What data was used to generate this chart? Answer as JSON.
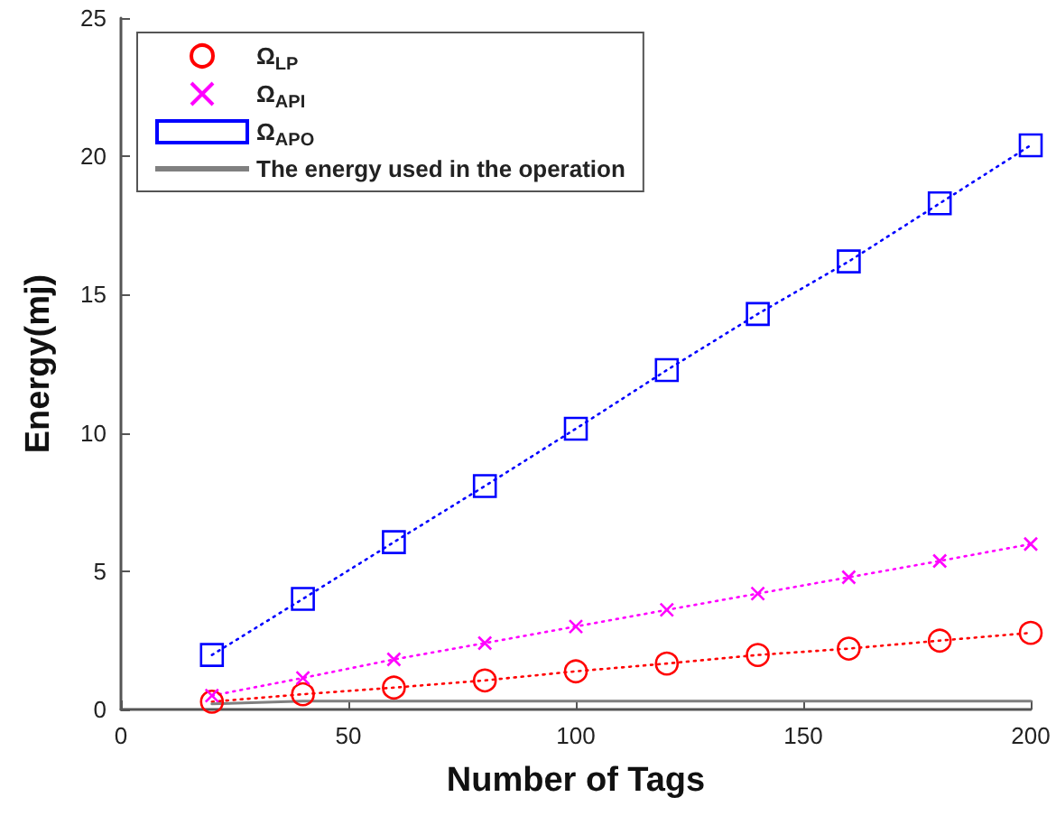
{
  "chart_data": {
    "type": "line",
    "xlabel": "Number of Tags",
    "ylabel": "Energy(mj)",
    "x": [
      20,
      40,
      60,
      80,
      100,
      120,
      140,
      160,
      180,
      200
    ],
    "series": [
      {
        "name": "Ω$_{LP}$",
        "color": "#ff0000",
        "marker": "circle",
        "line_style": "dotted",
        "values": [
          0.28,
          0.55,
          0.79,
          1.05,
          1.38,
          1.66,
          1.97,
          2.2,
          2.49,
          2.77
        ]
      },
      {
        "name": "Ω$_{API}$",
        "color": "#ff00ff",
        "marker": "cross",
        "line_style": "dotted",
        "values": [
          0.5,
          1.14,
          1.81,
          2.4,
          3.0,
          3.6,
          4.19,
          4.78,
          5.37,
          5.98
        ]
      },
      {
        "name": "Ω$_{APO}$",
        "color": "#0000ff",
        "marker": "square",
        "line_style": "dotted",
        "values": [
          1.97,
          4.0,
          6.05,
          8.08,
          10.15,
          12.27,
          14.3,
          16.2,
          18.3,
          20.4
        ]
      },
      {
        "name": "The energy used in the operation",
        "color": "#808080",
        "marker": "none",
        "line_style": "solid",
        "values": [
          0.2,
          0.3,
          0.3,
          0.3,
          0.3,
          0.3,
          0.3,
          0.3,
          0.3,
          0.3
        ]
      }
    ],
    "xlim": [
      0,
      200
    ],
    "xticks": [
      0,
      50,
      100,
      150,
      200
    ],
    "ylim": [
      0,
      25
    ],
    "yticks": [
      0,
      5,
      10,
      15,
      20,
      25
    ],
    "grid": false,
    "legend": "top left"
  }
}
